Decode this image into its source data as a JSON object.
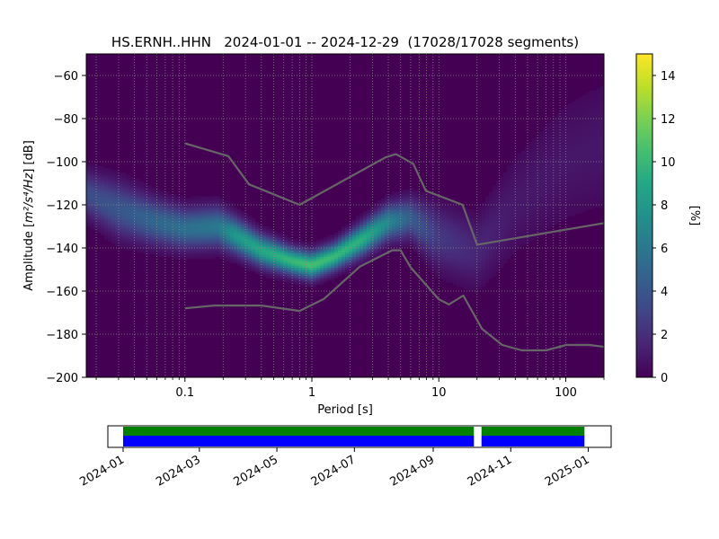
{
  "chart_data": [
    {
      "type": "heatmap",
      "title": "HS.ERNH..HHN   2024-01-01 -- 2024-12-29  (17028/17028 segments)",
      "xlabel": "Period [s]",
      "ylabel_prefix": "Amplitude [",
      "ylabel_math": "m²/s⁴/Hz",
      "ylabel_suffix": "] [dB]",
      "x_scale": "log",
      "xlim": [
        0.0167,
        200
      ],
      "ylim": [
        -200,
        -50
      ],
      "xticks": [
        {
          "value": 0.1,
          "label": "0.1"
        },
        {
          "value": 1,
          "label": "1"
        },
        {
          "value": 10,
          "label": "10"
        },
        {
          "value": 100,
          "label": "100"
        }
      ],
      "yticks": [
        {
          "value": -60,
          "label": "−60"
        },
        {
          "value": -80,
          "label": "−80"
        },
        {
          "value": -100,
          "label": "−100"
        },
        {
          "value": -120,
          "label": "−120"
        },
        {
          "value": -140,
          "label": "−140"
        },
        {
          "value": -160,
          "label": "−160"
        },
        {
          "value": -180,
          "label": "−180"
        },
        {
          "value": -200,
          "label": "−200"
        }
      ],
      "grid": "dotted",
      "colormap": "viridis",
      "background_color": "#440154",
      "colorbar": {
        "label": "[%]",
        "range": [
          0,
          15
        ],
        "ticks": [
          {
            "value": 0,
            "label": "0"
          },
          {
            "value": 2,
            "label": "2"
          },
          {
            "value": 4,
            "label": "4"
          },
          {
            "value": 6,
            "label": "6"
          },
          {
            "value": 8,
            "label": "8"
          },
          {
            "value": 10,
            "label": "10"
          },
          {
            "value": 12,
            "label": "12"
          },
          {
            "value": 14,
            "label": "14"
          }
        ]
      },
      "psd_mode_band": {
        "description_units": "period [s], center amplitude [dB], half-width [dB], peak percent",
        "points": [
          {
            "period": 0.017,
            "center": -115,
            "spread": 10,
            "peak": 3.5
          },
          {
            "period": 0.03,
            "center": -122,
            "spread": 12,
            "peak": 4.0
          },
          {
            "period": 0.06,
            "center": -128,
            "spread": 10,
            "peak": 5.0
          },
          {
            "period": 0.1,
            "center": -131,
            "spread": 9,
            "peak": 5.5
          },
          {
            "period": 0.18,
            "center": -130,
            "spread": 9,
            "peak": 6.0
          },
          {
            "period": 0.25,
            "center": -134,
            "spread": 8,
            "peak": 8.0
          },
          {
            "period": 0.4,
            "center": -141,
            "spread": 7,
            "peak": 9.0
          },
          {
            "period": 0.7,
            "center": -146,
            "spread": 6,
            "peak": 10.0
          },
          {
            "period": 1.0,
            "center": -148,
            "spread": 6,
            "peak": 10.5
          },
          {
            "period": 1.5,
            "center": -144,
            "spread": 6,
            "peak": 10.0
          },
          {
            "period": 2.5,
            "center": -136,
            "spread": 7,
            "peak": 9.5
          },
          {
            "period": 4.0,
            "center": -128,
            "spread": 8,
            "peak": 7.0
          },
          {
            "period": 6.0,
            "center": -126,
            "spread": 9,
            "peak": 4.5
          },
          {
            "period": 10,
            "center": -135,
            "spread": 14,
            "peak": 2.5
          },
          {
            "period": 20,
            "center": -142,
            "spread": 16,
            "peak": 1.6
          },
          {
            "period": 40,
            "center": -120,
            "spread": 22,
            "peak": 1.0
          },
          {
            "period": 100,
            "center": -100,
            "spread": 28,
            "peak": 0.9
          },
          {
            "period": 200,
            "center": -92,
            "spread": 30,
            "peak": 0.9
          }
        ]
      },
      "series": [
        {
          "role": "new-high-noise-model",
          "color": "#666666",
          "points": [
            [
              0.1,
              -91.5
            ],
            [
              0.22,
              -97.4
            ],
            [
              0.32,
              -110.5
            ],
            [
              0.8,
              -120
            ],
            [
              3.8,
              -98
            ],
            [
              4.6,
              -96.5
            ],
            [
              6.3,
              -101
            ],
            [
              7.9,
              -113.5
            ],
            [
              15.4,
              -120
            ],
            [
              20,
              -138.5
            ],
            [
              354.8,
              -126
            ]
          ]
        },
        {
          "role": "new-low-noise-model",
          "color": "#666666",
          "points": [
            [
              0.1,
              -168
            ],
            [
              0.17,
              -166.7
            ],
            [
              0.4,
              -166.7
            ],
            [
              0.8,
              -169.2
            ],
            [
              1.24,
              -163.7
            ],
            [
              2.4,
              -148.6
            ],
            [
              4.3,
              -141.1
            ],
            [
              5.0,
              -141.1
            ],
            [
              6.0,
              -149
            ],
            [
              10,
              -163.8
            ],
            [
              12,
              -166.2
            ],
            [
              15.6,
              -162.1
            ],
            [
              21.9,
              -177.5
            ],
            [
              31.6,
              -185
            ],
            [
              45,
              -187.5
            ],
            [
              70,
              -187.5
            ],
            [
              101,
              -185
            ],
            [
              154,
              -185
            ],
            [
              328,
              -187.5
            ]
          ]
        }
      ]
    },
    {
      "type": "timeline",
      "xlim": [
        "2023-12-20",
        "2025-01-19"
      ],
      "xticks": [
        "2024-01",
        "2024-03",
        "2024-05",
        "2024-07",
        "2024-09",
        "2024-11",
        "2025-01"
      ],
      "tick_dates": [
        "2024-01-01",
        "2024-03-01",
        "2024-05-01",
        "2024-07-01",
        "2024-09-01",
        "2024-11-01",
        "2025-01-01"
      ],
      "tick_rotation_deg": -30,
      "coverage": {
        "green_color": "#008000",
        "blue_color": "#0000ff",
        "intervals": [
          [
            "2024-01-01",
            "2024-10-03"
          ],
          [
            "2024-10-09",
            "2024-12-29"
          ]
        ]
      }
    }
  ]
}
